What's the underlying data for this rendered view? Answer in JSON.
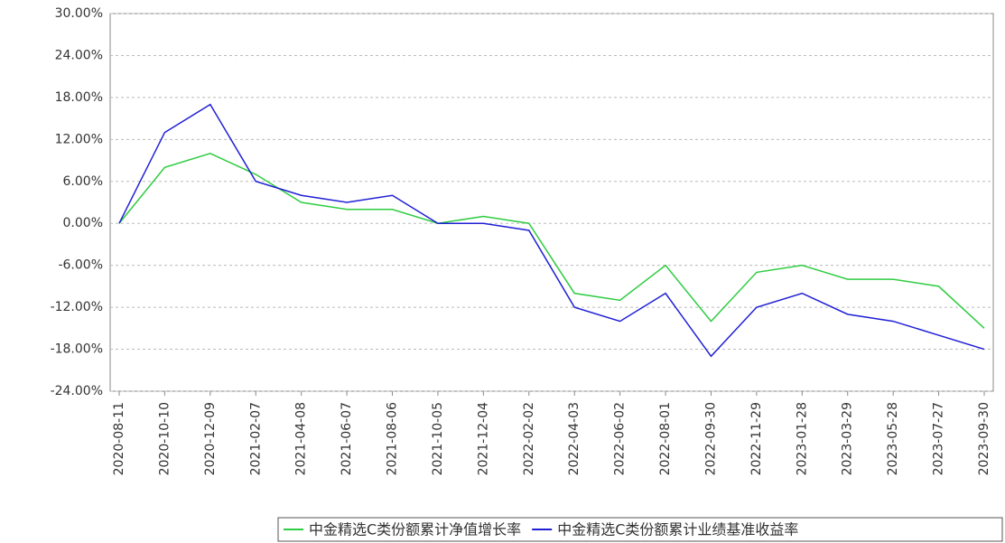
{
  "chart_data": {
    "type": "line",
    "categories": [
      "2020-08-11",
      "2020-10-10",
      "2020-12-09",
      "2021-02-07",
      "2021-04-08",
      "2021-06-07",
      "2021-08-06",
      "2021-10-05",
      "2021-12-04",
      "2022-02-02",
      "2022-04-03",
      "2022-06-02",
      "2022-08-01",
      "2022-09-30",
      "2022-11-29",
      "2023-01-28",
      "2023-03-29",
      "2023-05-28",
      "2023-07-27",
      "2023-09-30"
    ],
    "series": [
      {
        "name": "中金精选C类份额累计净值增长率",
        "color": "#2ecc40",
        "values": [
          0,
          8,
          10,
          7,
          3,
          2,
          2,
          0,
          1,
          0,
          -10,
          -11,
          -6,
          -14,
          -7,
          -6,
          -8,
          -8,
          -9,
          -15
        ]
      },
      {
        "name": "中金精选C类份额累计业绩基准收益率",
        "color": "#1f1fd6",
        "values": [
          0,
          13,
          17,
          6,
          4,
          3,
          4,
          0,
          0,
          -1,
          -12,
          -14,
          -10,
          -19,
          -12,
          -10,
          -13,
          -14,
          -16,
          -18
        ]
      }
    ],
    "ylim": [
      -24,
      30
    ],
    "yticks": [
      {
        "value": -24,
        "label": "-24.00%"
      },
      {
        "value": -18,
        "label": "-18.00%"
      },
      {
        "value": -12,
        "label": "-12.00%"
      },
      {
        "value": -6,
        "label": "-6.00%"
      },
      {
        "value": 0,
        "label": "0.00%"
      },
      {
        "value": 6,
        "label": "6.00%"
      },
      {
        "value": 12,
        "label": "12.00%"
      },
      {
        "value": 18,
        "label": "18.00%"
      },
      {
        "value": 24,
        "label": "24.00%"
      },
      {
        "value": 30,
        "label": "30.00%"
      }
    ],
    "grid": true
  }
}
